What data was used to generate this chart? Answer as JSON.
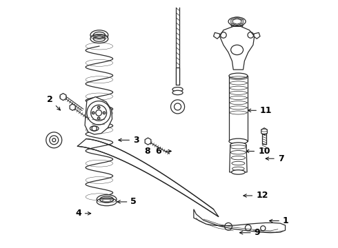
{
  "bg_color": "#ffffff",
  "line_color": "#2a2a2a",
  "label_color": "#000000",
  "figsize": [
    4.9,
    3.6
  ],
  "dpi": 100,
  "label_fontsize": 9,
  "arrow_lw": 0.7,
  "parts_lw": 0.9,
  "label_configs": [
    [
      "1",
      [
        0.895,
        0.108
      ],
      [
        0.96,
        0.108
      ]
    ],
    [
      "2",
      [
        0.068,
        0.548
      ],
      [
        0.03,
        0.6
      ]
    ],
    [
      "3",
      [
        0.285,
        0.435
      ],
      [
        0.355,
        0.435
      ]
    ],
    [
      "4",
      [
        0.195,
        0.138
      ],
      [
        0.145,
        0.138
      ]
    ],
    [
      "5",
      [
        0.28,
        0.185
      ],
      [
        0.345,
        0.185
      ]
    ],
    [
      "6",
      [
        0.52,
        0.39
      ],
      [
        0.468,
        0.39
      ]
    ],
    [
      "7",
      [
        0.88,
        0.36
      ],
      [
        0.94,
        0.36
      ]
    ],
    [
      "8",
      [
        0.425,
        0.448
      ],
      [
        0.425,
        0.39
      ]
    ],
    [
      "9",
      [
        0.775,
        0.06
      ],
      [
        0.845,
        0.06
      ]
    ],
    [
      "10",
      [
        0.8,
        0.39
      ],
      [
        0.86,
        0.39
      ]
    ],
    [
      "11",
      [
        0.808,
        0.555
      ],
      [
        0.868,
        0.555
      ]
    ],
    [
      "12",
      [
        0.79,
        0.21
      ],
      [
        0.852,
        0.21
      ]
    ]
  ]
}
